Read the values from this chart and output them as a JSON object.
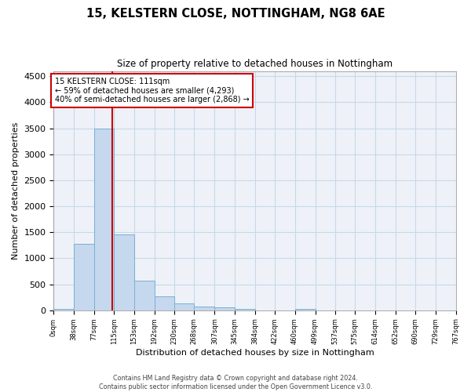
{
  "title_line1": "15, KELSTERN CLOSE, NOTTINGHAM, NG8 6AE",
  "title_line2": "Size of property relative to detached houses in Nottingham",
  "xlabel": "Distribution of detached houses by size in Nottingham",
  "ylabel": "Number of detached properties",
  "bar_color": "#c5d8ee",
  "bar_edge_color": "#7aafd4",
  "grid_color": "#c8d8e8",
  "annotation_line_color": "#cc0000",
  "annotation_box_color": "#cc0000",
  "annotation_text": "15 KELSTERN CLOSE: 111sqm\n← 59% of detached houses are smaller (4,293)\n40% of semi-detached houses are larger (2,868) →",
  "property_size": 111,
  "bin_edges": [
    0,
    38,
    77,
    115,
    153,
    192,
    230,
    268,
    307,
    345,
    384,
    422,
    460,
    499,
    537,
    575,
    614,
    652,
    690,
    729,
    767
  ],
  "bin_labels": [
    "0sqm",
    "38sqm",
    "77sqm",
    "115sqm",
    "153sqm",
    "192sqm",
    "230sqm",
    "268sqm",
    "307sqm",
    "345sqm",
    "384sqm",
    "422sqm",
    "460sqm",
    "499sqm",
    "537sqm",
    "575sqm",
    "614sqm",
    "652sqm",
    "690sqm",
    "729sqm",
    "767sqm"
  ],
  "bar_heights": [
    30,
    1280,
    3500,
    1460,
    570,
    260,
    130,
    75,
    50,
    25,
    0,
    0,
    30,
    0,
    0,
    0,
    0,
    0,
    0,
    0
  ],
  "ylim": [
    0,
    4600
  ],
  "yticks": [
    0,
    500,
    1000,
    1500,
    2000,
    2500,
    3000,
    3500,
    4000,
    4500
  ],
  "footer_line1": "Contains HM Land Registry data © Crown copyright and database right 2024.",
  "footer_line2": "Contains public sector information licensed under the Open Government Licence v3.0.",
  "background_color": "#ffffff",
  "plot_bg_color": "#eef2f8"
}
